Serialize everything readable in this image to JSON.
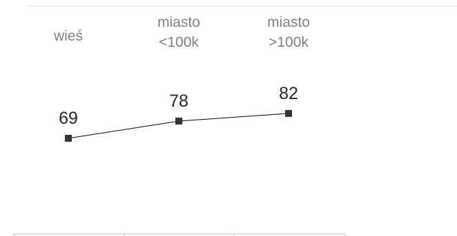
{
  "chart_data": {
    "type": "line",
    "categories": [
      [
        "wieś"
      ],
      [
        "miasto",
        "<100k"
      ],
      [
        "miasto",
        ">100k"
      ]
    ],
    "values": [
      69,
      78,
      82
    ],
    "data_labels": [
      "69",
      "78",
      "82"
    ],
    "grid": false,
    "legend": "none",
    "colors": {
      "line": "#000000",
      "marker": "#333333",
      "category_text": "#7f7f7f",
      "value_text": "#262626",
      "rule": "#d9d9d9",
      "axis_line": "#bfbfbf"
    }
  }
}
